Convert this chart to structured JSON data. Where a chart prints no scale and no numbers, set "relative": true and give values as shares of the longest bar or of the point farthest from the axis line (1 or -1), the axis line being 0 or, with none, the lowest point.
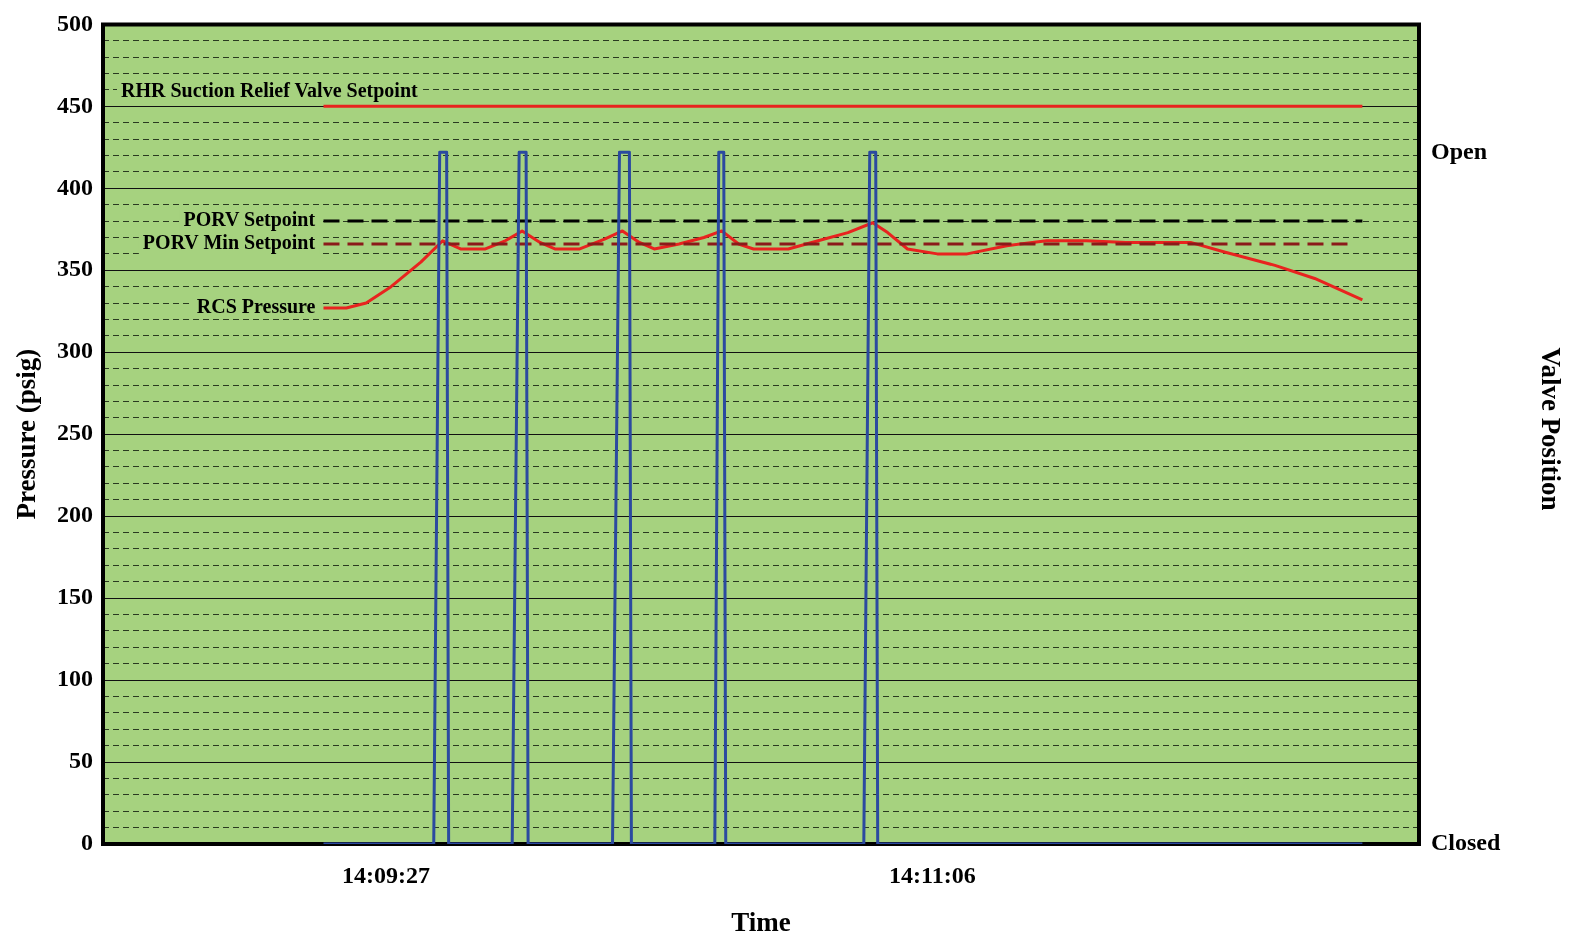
{
  "chart_data": [
    {
      "type": "line",
      "xlabel": "Time",
      "ylabel": "Pressure (psig)",
      "xlim": [
        14.14325,
        14.2095
      ],
      "xticks": [
        {
          "value": 14.1575,
          "label": "14:09:27"
        },
        {
          "value": 14.185,
          "label": "14:11:06"
        }
      ],
      "ylim": [
        0,
        500
      ],
      "yticks": [
        0,
        {
          "value": 10,
          "label": null
        },
        {
          "value": 20,
          "label": null
        },
        {
          "value": 30,
          "label": null
        },
        {
          "value": 40,
          "label": null
        },
        50,
        {
          "value": 60,
          "label": null
        },
        {
          "value": 70,
          "label": null
        },
        {
          "value": 80,
          "label": null
        },
        {
          "value": 90,
          "label": null
        },
        100,
        {
          "value": 110,
          "label": null
        },
        {
          "value": 120,
          "label": null
        },
        {
          "value": 130,
          "label": null
        },
        {
          "value": 140,
          "label": null
        },
        150,
        {
          "value": 160,
          "label": null
        },
        {
          "value": 170,
          "label": null
        },
        {
          "value": 180,
          "label": null
        },
        {
          "value": 190,
          "label": null
        },
        200,
        {
          "value": 210,
          "label": null
        },
        {
          "value": 220,
          "label": null
        },
        {
          "value": 230,
          "label": null
        },
        {
          "value": 240,
          "label": null
        },
        250,
        {
          "value": 260,
          "label": null
        },
        {
          "value": 270,
          "label": null
        },
        {
          "value": 280,
          "label": null
        },
        {
          "value": 290,
          "label": null
        },
        300,
        {
          "value": 310,
          "label": null
        },
        {
          "value": 320,
          "label": null
        },
        {
          "value": 330,
          "label": null
        },
        {
          "value": 340,
          "label": null
        },
        350,
        {
          "value": 360,
          "label": null
        },
        {
          "value": 370,
          "label": null
        },
        {
          "value": 380,
          "label": null
        },
        {
          "value": 390,
          "label": null
        },
        400,
        {
          "value": 410,
          "label": null
        },
        {
          "value": 420,
          "label": null
        },
        {
          "value": 430,
          "label": null
        },
        {
          "value": 440,
          "label": null
        },
        450,
        {
          "value": 460,
          "label": null
        },
        {
          "value": 470,
          "label": null
        },
        {
          "value": 480,
          "label": null
        },
        {
          "value": 490,
          "label": null
        },
        500
      ],
      "grid": "y",
      "series": [
        {
          "name": "RHR Suction Relief Valve Setpoint",
          "color": "#e8231f",
          "line_style": "solid",
          "x": [
            14.15435,
            14.20665
          ],
          "values": [
            450,
            450
          ]
        },
        {
          "name": "PORV Setpoint",
          "color": "#000000",
          "line_style": "dashed",
          "x": [
            14.15435,
            14.20665
          ],
          "values": [
            380,
            380
          ]
        },
        {
          "name": "PORV Min Setpoint",
          "color": "#8b1a1a",
          "line_style": "dashed",
          "x": [
            14.15435,
            14.2059
          ],
          "values": [
            366,
            366
          ]
        },
        {
          "name": "RCS Pressure",
          "color": "#e8231f",
          "line_style": "solid",
          "x": [
            14.15435,
            14.1555,
            14.1565,
            14.15775,
            14.15925,
            14.16035,
            14.16125,
            14.1625,
            14.1635,
            14.16435,
            14.16525,
            14.166,
            14.16725,
            14.1685,
            14.1694,
            14.17025,
            14.171,
            14.17225,
            14.1735,
            14.1744,
            14.17525,
            14.176,
            14.17775,
            14.17925,
            14.18075,
            14.182,
            14.18275,
            14.18375,
            14.18525,
            14.18675,
            14.18875,
            14.19075,
            14.19275,
            14.19475,
            14.198,
            14.19975,
            14.20225,
            14.20425,
            14.20665
          ],
          "values": [
            327,
            327,
            330,
            340,
            355,
            368,
            363,
            363,
            368,
            374,
            367,
            363,
            363,
            369,
            374,
            367,
            363,
            366,
            370,
            374,
            366,
            363,
            363,
            368,
            373,
            379,
            373,
            363,
            360,
            360,
            365,
            368,
            368,
            367,
            367,
            361,
            353,
            345,
            332
          ]
        }
      ]
    },
    {
      "type": "line",
      "ylabel": "Valve Position",
      "relative": true,
      "xlim": [
        14.14325,
        14.2095
      ],
      "annotations": [
        "Open",
        "Closed"
      ],
      "series": [
        {
          "color": "#2b4aa0",
          "line_style": "solid",
          "x": [
            14.15435,
            14.1599,
            14.1602,
            14.16055,
            14.16065,
            14.16385,
            14.1642,
            14.16455,
            14.16465,
            14.1689,
            14.16925,
            14.16975,
            14.16985,
            14.17405,
            14.17425,
            14.1745,
            14.1746,
            14.18155,
            14.18185,
            14.18215,
            14.18225,
            14.20665
          ],
          "values": [
            0,
            0,
            1,
            1,
            0,
            0,
            1,
            1,
            0,
            0,
            1,
            1,
            0,
            0,
            1,
            1,
            0,
            0,
            1,
            1,
            0,
            0
          ]
        }
      ]
    }
  ]
}
